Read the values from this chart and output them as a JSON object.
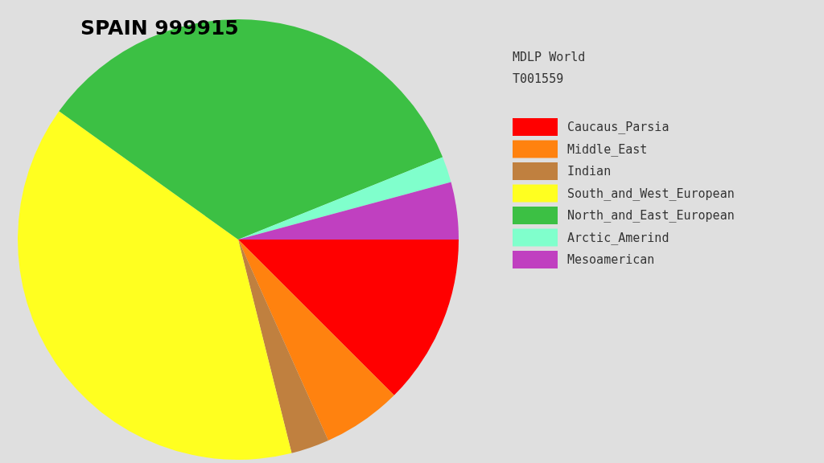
{
  "chart_data": {
    "type": "pie",
    "title": "SPAIN 999915",
    "legend_title": "MDLP World\nT001559",
    "categories": [
      "Caucaus_Parsia",
      "Middle_East",
      "Indian",
      "South_and_West_European",
      "North_and_East_European",
      "Arctic_Amerind",
      "Mesoamerican"
    ],
    "values": [
      12.5,
      5.8,
      2.8,
      38.8,
      34.0,
      1.9,
      4.2
    ],
    "colors": [
      "#ff0000",
      "#ff820f",
      "#c0803f",
      "#ffff20",
      "#3cc044",
      "#80ffcc",
      "#c040c0"
    ],
    "legend": "right"
  }
}
